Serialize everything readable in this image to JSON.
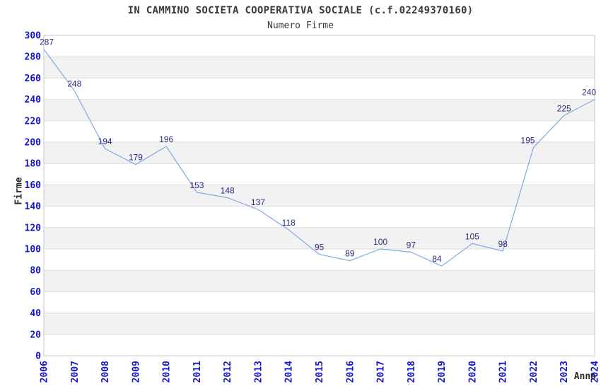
{
  "header": {
    "title": "IN CAMMINO SOCIETA COOPERATIVA SOCIALE (c.f.02249370160)",
    "subtitle": "Numero Firme"
  },
  "chart_data": {
    "type": "line",
    "title": "IN CAMMINO SOCIETA COOPERATIVA SOCIALE (c.f.02249370160)",
    "subtitle": "Numero Firme",
    "xlabel": "Anno",
    "ylabel": "Firme",
    "categories": [
      "2006",
      "2007",
      "2008",
      "2009",
      "2010",
      "2011",
      "2012",
      "2013",
      "2014",
      "2015",
      "2016",
      "2017",
      "2018",
      "2019",
      "2020",
      "2021",
      "2022",
      "2023",
      "2024"
    ],
    "values": [
      287,
      248,
      194,
      179,
      196,
      153,
      148,
      137,
      118,
      95,
      89,
      100,
      97,
      84,
      105,
      98,
      195,
      225,
      240
    ],
    "ylim": [
      0,
      300
    ],
    "ytick_step": 20,
    "grid": "horizontal-gridlines-with-alternating-bands",
    "legend": "none",
    "point_labels_shown": true
  },
  "colors": {
    "line": "#7EA9E2",
    "tick_label": "#1515CD",
    "point_label": "#2B2B80",
    "band_gray": "#F2F2F2",
    "gridline": "#DCDCDC",
    "plot_border": "#C8C8C8",
    "title_text": "#3A3A3A"
  }
}
